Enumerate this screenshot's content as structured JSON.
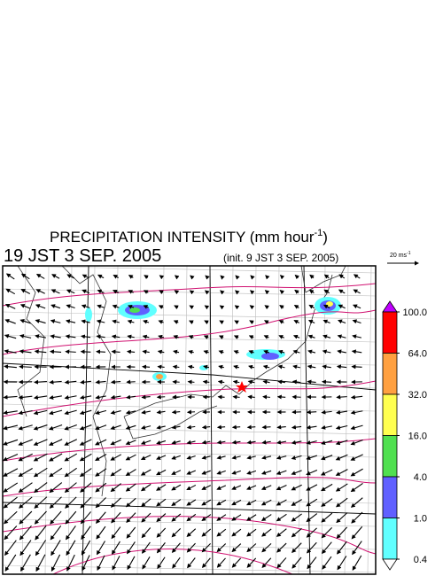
{
  "header": {
    "title": "PRECIPITATION INTENSITY (mm hour",
    "title_exponent": "-1",
    "title_end": ")",
    "valid_time": "19 JST 3 SEP. 2005",
    "init_time": "(init. 9 JST 3 SEP. 2005)"
  },
  "vector_scale": {
    "label": "20 ms",
    "exponent": "-1"
  },
  "colorbar": {
    "levels": [
      {
        "value": 100,
        "label": "100.0"
      },
      {
        "value": 64,
        "label": "64.0"
      },
      {
        "value": 32,
        "label": "32.0"
      },
      {
        "value": 16,
        "label": "16.0"
      },
      {
        "value": 4,
        "label": "4.0"
      },
      {
        "value": 1,
        "label": "1.0"
      },
      {
        "value": 0.4,
        "label": "0.4"
      }
    ],
    "colors": [
      "#ff0000",
      "#ffa040",
      "#ffff50",
      "#50e050",
      "#6060ff",
      "#60ffff"
    ],
    "over_color": "#c000ff",
    "under_color": "#ffffff"
  }
}
